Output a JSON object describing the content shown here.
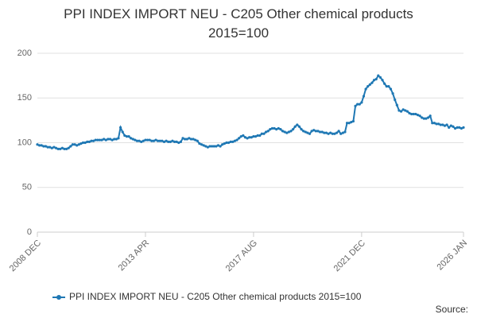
{
  "chart_data": {
    "type": "line",
    "title": "PPI INDEX IMPORT NEU - C205 Other chemical products 2015=100",
    "source": "Source:",
    "categories": [
      "2008 DEC",
      null,
      null,
      null,
      null,
      null,
      null,
      null,
      null,
      null,
      null,
      null,
      null,
      null,
      null,
      null,
      null,
      null,
      null,
      null,
      null,
      null,
      null,
      null,
      null,
      null,
      null,
      null,
      null,
      null,
      null,
      null,
      null,
      null,
      null,
      null,
      null,
      null,
      null,
      null,
      null,
      null,
      null,
      null,
      null,
      null,
      null,
      null,
      null,
      null,
      null,
      null,
      "2013 APR",
      null,
      null,
      null,
      null,
      null,
      null,
      null,
      null,
      null,
      null,
      null,
      null,
      null,
      null,
      null,
      null,
      null,
      null,
      null,
      null,
      null,
      null,
      null,
      null,
      null,
      null,
      null,
      null,
      null,
      null,
      null,
      null,
      null,
      null,
      null,
      null,
      null,
      null,
      null,
      null,
      null,
      null,
      null,
      null,
      null,
      null,
      null,
      null,
      null,
      null,
      null,
      "2017 AUG",
      null,
      null,
      null,
      null,
      null,
      null,
      null,
      null,
      null,
      null,
      null,
      null,
      null,
      null,
      null,
      null,
      null,
      null,
      null,
      null,
      null,
      null,
      null,
      null,
      null,
      null,
      null,
      null,
      null,
      null,
      null,
      null,
      null,
      null,
      null,
      null,
      null,
      null,
      null,
      null,
      null,
      null,
      null,
      null,
      null,
      null,
      null,
      null,
      null,
      null,
      null,
      "2021 DEC",
      null,
      null,
      null,
      null,
      null,
      null,
      null,
      null,
      null,
      null,
      null,
      null,
      null,
      null,
      null,
      null,
      null,
      null,
      null,
      null,
      null,
      null,
      null,
      null,
      null,
      null,
      null,
      null,
      null,
      null,
      null,
      null,
      null,
      null,
      null,
      null,
      null,
      null,
      null,
      null,
      null,
      null,
      null,
      null,
      null,
      null,
      null,
      null,
      "2026 JAN"
    ],
    "series": [
      {
        "name": "PPI INDEX IMPORT NEU - C205 Other chemical products 2015=100",
        "color": "#1f78b4",
        "values": [
          98,
          97,
          97,
          96,
          96,
          95,
          95,
          94,
          95,
          94,
          93,
          93,
          94,
          93,
          93,
          94,
          96,
          98,
          98,
          97,
          98,
          99,
          100,
          100,
          101,
          101,
          102,
          102,
          103,
          103,
          103,
          103,
          104,
          103,
          104,
          104,
          103,
          104,
          104,
          105,
          117,
          112,
          108,
          107,
          107,
          105,
          104,
          103,
          102,
          102,
          101,
          102,
          103,
          103,
          103,
          102,
          102,
          103,
          102,
          102,
          102,
          101,
          102,
          101,
          101,
          102,
          101,
          101,
          100,
          101,
          105,
          104,
          104,
          105,
          104,
          104,
          103,
          102,
          99,
          98,
          97,
          96,
          95,
          96,
          96,
          96,
          96,
          97,
          96,
          98,
          99,
          100,
          100,
          101,
          101,
          102,
          103,
          105,
          107,
          108,
          106,
          105,
          106,
          106,
          107,
          107,
          108,
          108,
          110,
          110,
          112,
          113,
          115,
          116,
          116,
          115,
          116,
          115,
          113,
          112,
          111,
          112,
          113,
          115,
          118,
          120,
          118,
          115,
          113,
          112,
          111,
          110,
          113,
          114,
          113,
          113,
          112,
          112,
          111,
          111,
          110,
          111,
          110,
          110,
          111,
          113,
          110,
          111,
          112,
          122,
          122,
          123,
          124,
          141,
          143,
          143,
          145,
          152,
          160,
          163,
          165,
          167,
          170,
          171,
          175,
          173,
          170,
          166,
          163,
          163,
          160,
          155,
          148,
          142,
          136,
          135,
          137,
          136,
          135,
          133,
          132,
          132,
          132,
          131,
          130,
          128,
          127,
          127,
          128,
          130,
          122,
          122,
          121,
          121,
          120,
          120,
          119,
          120,
          117,
          119,
          118,
          116,
          117,
          117,
          116,
          117
        ]
      }
    ],
    "ylim": [
      0,
      200
    ],
    "yticks": [
      0,
      50,
      100,
      150,
      200
    ],
    "grid": true
  }
}
